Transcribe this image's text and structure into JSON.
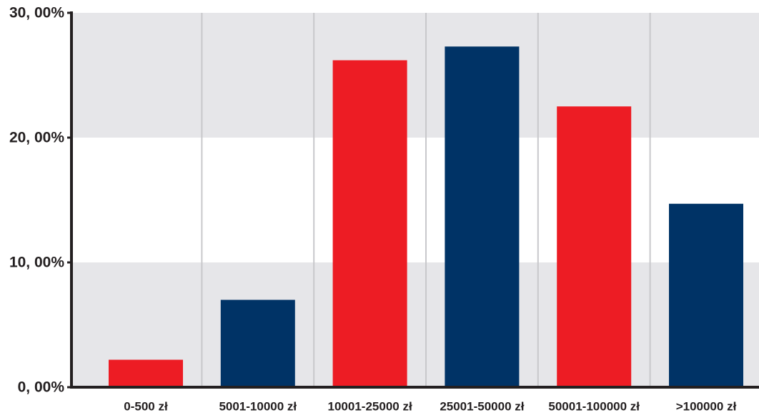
{
  "chart_data": {
    "type": "bar",
    "categories": [
      "0-500 zł",
      "5001-10000 zł",
      "10001-25000 zł",
      "25001-50000 zł",
      "50001-100000 zł",
      ">100000 zł"
    ],
    "values": [
      2.2,
      7.0,
      26.2,
      27.3,
      22.5,
      14.7
    ],
    "colors": [
      "#ed1c24",
      "#003366",
      "#ed1c24",
      "#003366",
      "#ed1c24",
      "#003366"
    ],
    "ylim": [
      0,
      30
    ],
    "yticks": [
      {
        "value": 0,
        "label": "0, 00%"
      },
      {
        "value": 10,
        "label": "10, 00%"
      },
      {
        "value": 20,
        "label": "20, 00%"
      },
      {
        "value": 30,
        "label": "30, 00%"
      }
    ],
    "grid": true
  }
}
